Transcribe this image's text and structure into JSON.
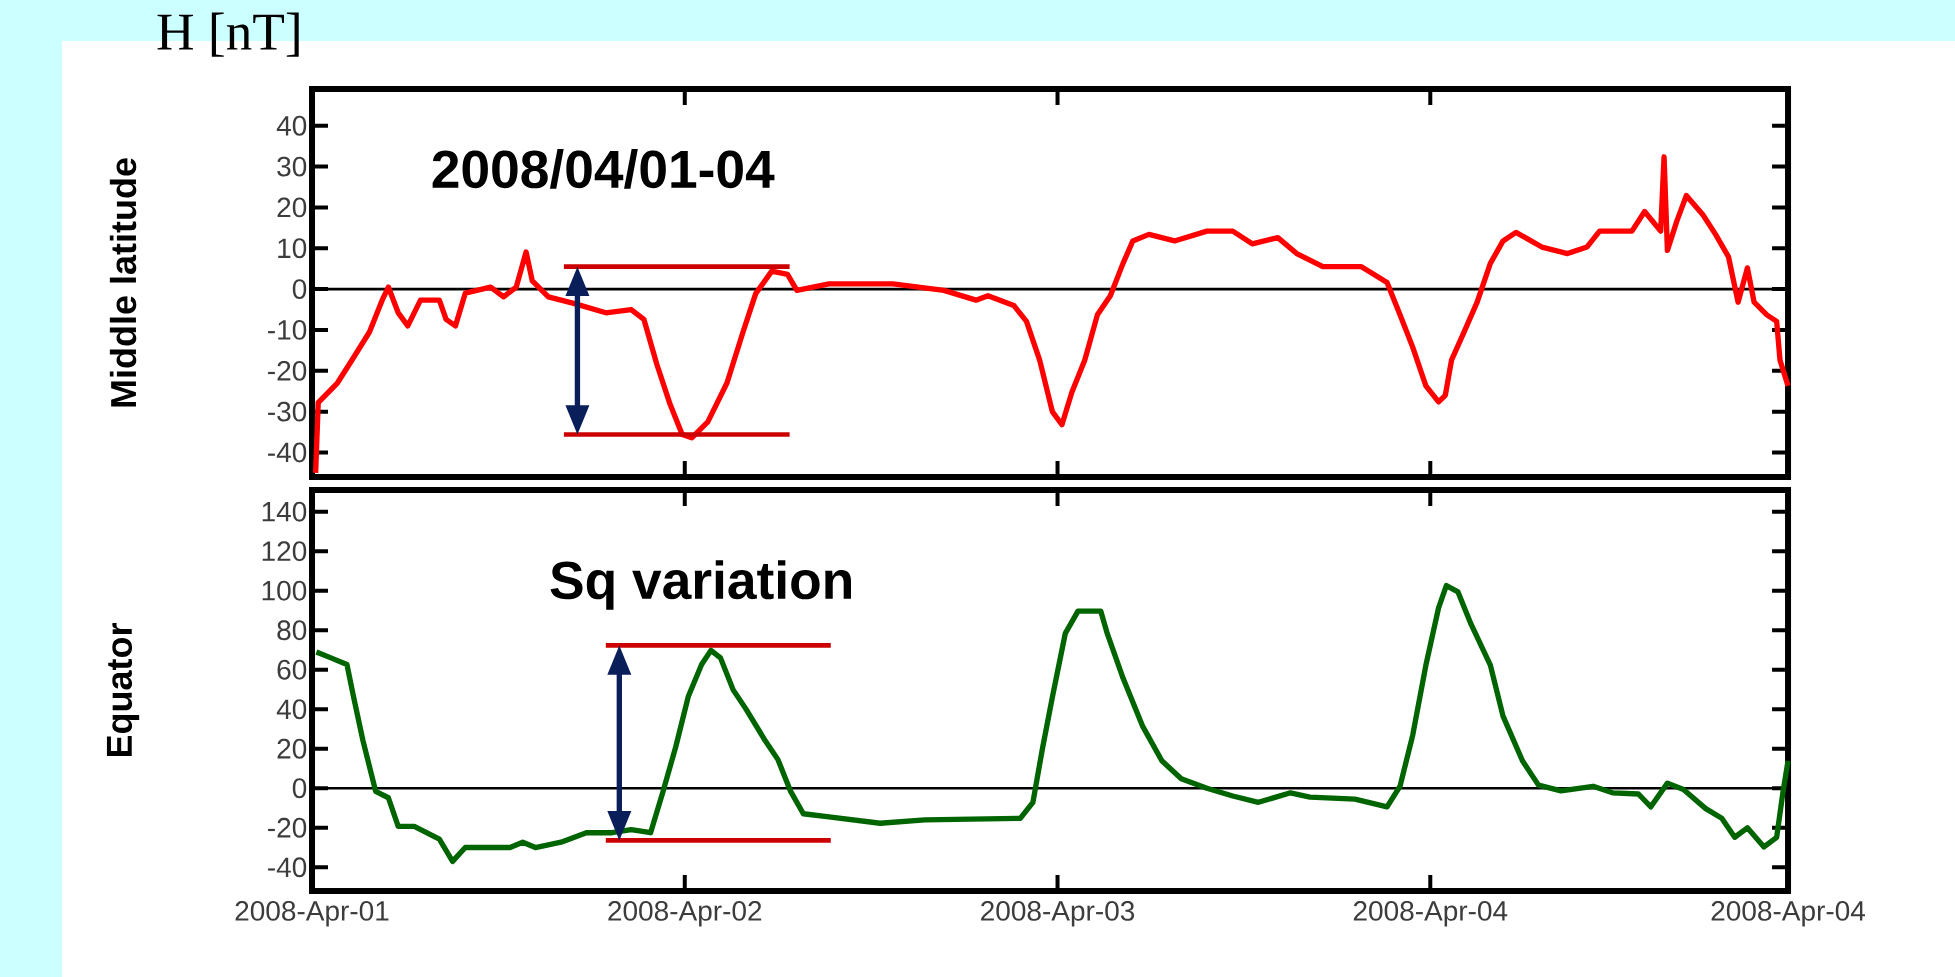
{
  "chart_data": [
    {
      "type": "line",
      "ylabel": "Middle latitude",
      "annotations": [
        "H [nT]",
        "2008/04/01-04"
      ],
      "xlim": [
        "2008-04-01T00:00",
        "2008-04-04T23:02"
      ],
      "ylim": [
        -46,
        49
      ],
      "tick_labels": "y",
      "xticks": [
        {
          "value": "2008-04-01",
          "label": null
        },
        {
          "value": "2008-04-02",
          "label": null
        },
        {
          "value": "2008-04-03",
          "label": null
        },
        {
          "value": "2008-04-04",
          "label": null
        },
        {
          "value": "2008-04-04T23:02",
          "label": null
        }
      ],
      "yticks": [
        -40,
        -30,
        -20,
        -10,
        0,
        10,
        20,
        30,
        40
      ],
      "ref_lines": [
        {
          "axis": "y",
          "value": 0,
          "color": "#000000"
        }
      ],
      "series": [
        {
          "color": "#ff0000",
          "x": [
            "2008-04-01T00:14",
            "2008-04-01T00:24",
            "2008-04-01T01:38",
            "2008-04-01T02:40",
            "2008-04-01T03:42",
            "2008-04-01T04:31",
            "2008-04-01T04:55",
            "2008-04-01T05:33",
            "2008-04-01T06:10",
            "2008-04-01T06:59",
            "2008-04-01T08:12",
            "2008-04-01T08:38",
            "2008-04-01T09:14",
            "2008-04-01T09:52",
            "2008-04-01T11:30",
            "2008-04-01T12:20",
            "2008-04-01T13:09",
            "2008-04-01T13:47",
            "2008-04-01T14:11",
            "2008-04-01T15:13",
            "2008-04-01T16:51",
            "2008-04-01T18:55",
            "2008-04-01T20:33",
            "2008-04-01T21:22",
            "2008-04-01T22:12",
            "2008-04-01T23:01",
            "2008-04-01T23:50",
            "2008-04-02T00:27",
            "2008-04-02T01:29",
            "2008-04-02T02:43",
            "2008-04-02T03:45",
            "2008-04-02T04:34",
            "2008-04-02T05:36",
            "2008-04-02T06:37",
            "2008-04-02T07:13",
            "2008-04-02T09:17",
            "2008-04-02T13:24",
            "2008-04-02T16:41",
            "2008-04-02T18:45",
            "2008-04-02T19:31",
            "2008-04-02T21:11",
            "2008-04-02T22:00",
            "2008-04-02T22:51",
            "2008-04-02T23:40",
            "2008-04-03T00:17",
            "2008-04-03T00:55",
            "2008-04-03T01:45",
            "2008-04-03T02:34",
            "2008-04-03T03:24",
            "2008-04-03T04:13",
            "2008-04-03T04:51",
            "2008-04-03T05:53",
            "2008-04-03T07:32",
            "2008-04-03T09:37",
            "2008-04-03T11:17",
            "2008-04-03T12:32",
            "2008-04-03T14:11",
            "2008-04-03T15:24",
            "2008-04-03T17:05",
            "2008-04-03T19:34",
            "2008-04-03T21:13",
            "2008-04-03T22:03",
            "2008-04-03T22:52",
            "2008-04-03T23:43",
            "2008-04-04T00:32",
            "2008-04-04T00:58",
            "2008-04-04T01:22",
            "2008-04-04T02:12",
            "2008-04-04T03:01",
            "2008-04-04T03:52",
            "2008-04-04T04:41",
            "2008-04-04T05:31",
            "2008-04-04T07:11",
            "2008-04-04T08:50",
            "2008-04-04T10:05",
            "2008-04-04T10:54",
            "2008-04-04T12:59",
            "2008-04-04T13:48",
            "2008-04-04T14:50",
            "2008-04-04T15:03",
            "2008-04-04T15:16",
            "2008-04-04T15:52",
            "2008-04-04T16:29",
            "2008-04-04T17:33",
            "2008-04-04T18:22",
            "2008-04-04T19:12",
            "2008-04-04T19:49",
            "2008-04-04T20:25",
            "2008-04-04T20:51",
            "2008-04-04T21:40",
            "2008-04-04T22:18",
            "2008-04-04T22:31",
            "2008-04-04T23:02"
          ],
          "values": [
            -45,
            -27.8,
            -23,
            -16.8,
            -10.5,
            -2.7,
            0.5,
            -5.8,
            -9,
            -2.7,
            -2.7,
            -7.4,
            -9,
            -1,
            0.5,
            -1.9,
            0.5,
            9.1,
            2,
            -1.9,
            -3.5,
            -5.8,
            -5,
            -7.4,
            -18.4,
            -27.8,
            -35.6,
            -36.4,
            -32.5,
            -23,
            -10.5,
            -1.1,
            4.4,
            3.6,
            -0.3,
            1.3,
            1.3,
            -0.3,
            -2.7,
            -1.6,
            -4,
            -7.9,
            -17.4,
            -30,
            -33.2,
            -25.3,
            -17.4,
            -6.3,
            -1.6,
            6.3,
            11.8,
            13.4,
            11.8,
            14.2,
            14.2,
            11.1,
            12.6,
            8.7,
            5.5,
            5.5,
            1.6,
            -6.3,
            -14.2,
            -23.7,
            -27.6,
            -26,
            -17.4,
            -10.3,
            -3.2,
            6.3,
            11.8,
            13.9,
            10.3,
            8.7,
            10.3,
            14.2,
            14.2,
            19,
            14.2,
            32.4,
            9.5,
            16.6,
            22.9,
            18.2,
            13.4,
            7.9,
            -3.2,
            5.2,
            -3.2,
            -6.3,
            -7.9,
            -17.4,
            -23.7
          ]
        },
        {
          "type": "line",
          "color": "#cc0000",
          "x": [
            "2008-04-01T16:13",
            "2008-04-02T06:45"
          ],
          "values": [
            5.5,
            5.5
          ]
        },
        {
          "type": "line",
          "color": "#cc0000",
          "x": [
            "2008-04-01T16:13",
            "2008-04-02T06:45"
          ],
          "values": [
            -35.6,
            -35.6
          ]
        }
      ]
    },
    {
      "type": "line",
      "ylabel": "Equator",
      "annotations": [
        "Sq variation"
      ],
      "xlim": [
        "2008-04-01T00:00",
        "2008-04-04T23:02"
      ],
      "ylim": [
        -52,
        151
      ],
      "xticks": [
        {
          "value": "2008-04-01",
          "label": "2008-Apr-01"
        },
        {
          "value": "2008-04-02",
          "label": "2008-Apr-02"
        },
        {
          "value": "2008-04-03",
          "label": "2008-Apr-03"
        },
        {
          "value": "2008-04-04",
          "label": "2008-Apr-04"
        },
        {
          "value": "2008-04-04T23:02",
          "label": "2008-Apr-04"
        }
      ],
      "yticks": [
        -40,
        -20,
        0,
        20,
        40,
        60,
        80,
        100,
        120,
        140
      ],
      "ref_lines": [
        {
          "axis": "y",
          "value": 0,
          "color": "#000000"
        }
      ],
      "series": [
        {
          "color": "#006400",
          "x": [
            "2008-04-01T00:17",
            "2008-04-01T01:13",
            "2008-04-01T02:15",
            "2008-04-01T02:40",
            "2008-04-01T03:17",
            "2008-04-01T04:06",
            "2008-04-01T04:55",
            "2008-04-01T05:33",
            "2008-04-01T06:35",
            "2008-04-01T08:12",
            "2008-04-01T09:03",
            "2008-04-01T09:52",
            "2008-04-01T12:45",
            "2008-04-01T13:34",
            "2008-04-01T14:23",
            "2008-04-01T16:02",
            "2008-04-01T17:40",
            "2008-04-01T19:19",
            "2008-04-01T20:33",
            "2008-04-01T21:48",
            "2008-04-01T22:36",
            "2008-04-01T23:25",
            "2008-04-02T00:14",
            "2008-04-02T01:05",
            "2008-04-02T01:41",
            "2008-04-02T02:18",
            "2008-04-02T03:07",
            "2008-04-02T03:56",
            "2008-04-02T05:11",
            "2008-04-02T06:00",
            "2008-04-02T06:49",
            "2008-04-02T07:38",
            "2008-04-02T09:17",
            "2008-04-02T12:35",
            "2008-04-02T15:27",
            "2008-04-02T21:36",
            "2008-04-02T22:25",
            "2008-04-02T23:02",
            "2008-04-02T23:40",
            "2008-04-03T00:30",
            "2008-04-03T01:19",
            "2008-04-03T02:47",
            "2008-04-03T03:12",
            "2008-04-03T04:13",
            "2008-04-03T05:28",
            "2008-04-03T06:43",
            "2008-04-03T07:58",
            "2008-04-03T09:37",
            "2008-04-03T11:17",
            "2008-04-03T12:56",
            "2008-04-03T15:00",
            "2008-04-03T16:15",
            "2008-04-03T19:09",
            "2008-04-03T21:13",
            "2008-04-03T22:03",
            "2008-04-03T22:52",
            "2008-04-03T23:43",
            "2008-04-04T00:32",
            "2008-04-04T01:02",
            "2008-04-04T01:47",
            "2008-04-04T02:37",
            "2008-04-04T03:52",
            "2008-04-04T04:41",
            "2008-04-04T05:56",
            "2008-04-04T06:58",
            "2008-04-04T08:25",
            "2008-04-04T10:29",
            "2008-04-04T11:44",
            "2008-04-04T13:24",
            "2008-04-04T14:12",
            "2008-04-04T15:16",
            "2008-04-04T16:18",
            "2008-04-04T17:44",
            "2008-04-04T18:46",
            "2008-04-04T19:36",
            "2008-04-04T20:25",
            "2008-04-04T21:29",
            "2008-04-04T22:18",
            "2008-04-04T22:42",
            "2008-04-04T23:02"
          ],
          "values": [
            69,
            66,
            62.7,
            46.6,
            24,
            -1.6,
            -4.8,
            -19.3,
            -19.3,
            -25.7,
            -37,
            -30,
            -30,
            -27.3,
            -30,
            -27.3,
            -22.5,
            -22.5,
            -20.9,
            -22.5,
            -1.6,
            20.9,
            46.6,
            62.7,
            69.8,
            66,
            49.8,
            40.2,
            24,
            14.5,
            -1.6,
            -12.9,
            -14.5,
            -17.7,
            -16,
            -15.2,
            -7.1,
            20.3,
            46.1,
            78.4,
            89.7,
            89.7,
            78.4,
            55.8,
            31.6,
            13.9,
            4.8,
            0,
            -3.9,
            -7.1,
            -2.3,
            -4.5,
            -5.5,
            -9.4,
            1,
            26.8,
            62.3,
            91.3,
            102.6,
            99.4,
            83.2,
            62.3,
            36.5,
            13.9,
            1.6,
            -1.3,
            1,
            -2.3,
            -2.9,
            -9.4,
            2.6,
            -0.6,
            -10.3,
            -15.2,
            -24.8,
            -20,
            -29.7,
            -24.8,
            -2.3,
            13.9
          ]
        },
        {
          "type": "line",
          "color": "#cc0000",
          "x": [
            "2008-04-01T18:55",
            "2008-04-02T09:24"
          ],
          "values": [
            72.3,
            72.3
          ]
        },
        {
          "type": "line",
          "color": "#cc0000",
          "x": [
            "2008-04-01T18:55",
            "2008-04-02T09:24"
          ],
          "values": [
            -26.4,
            -26.4
          ]
        }
      ]
    }
  ]
}
